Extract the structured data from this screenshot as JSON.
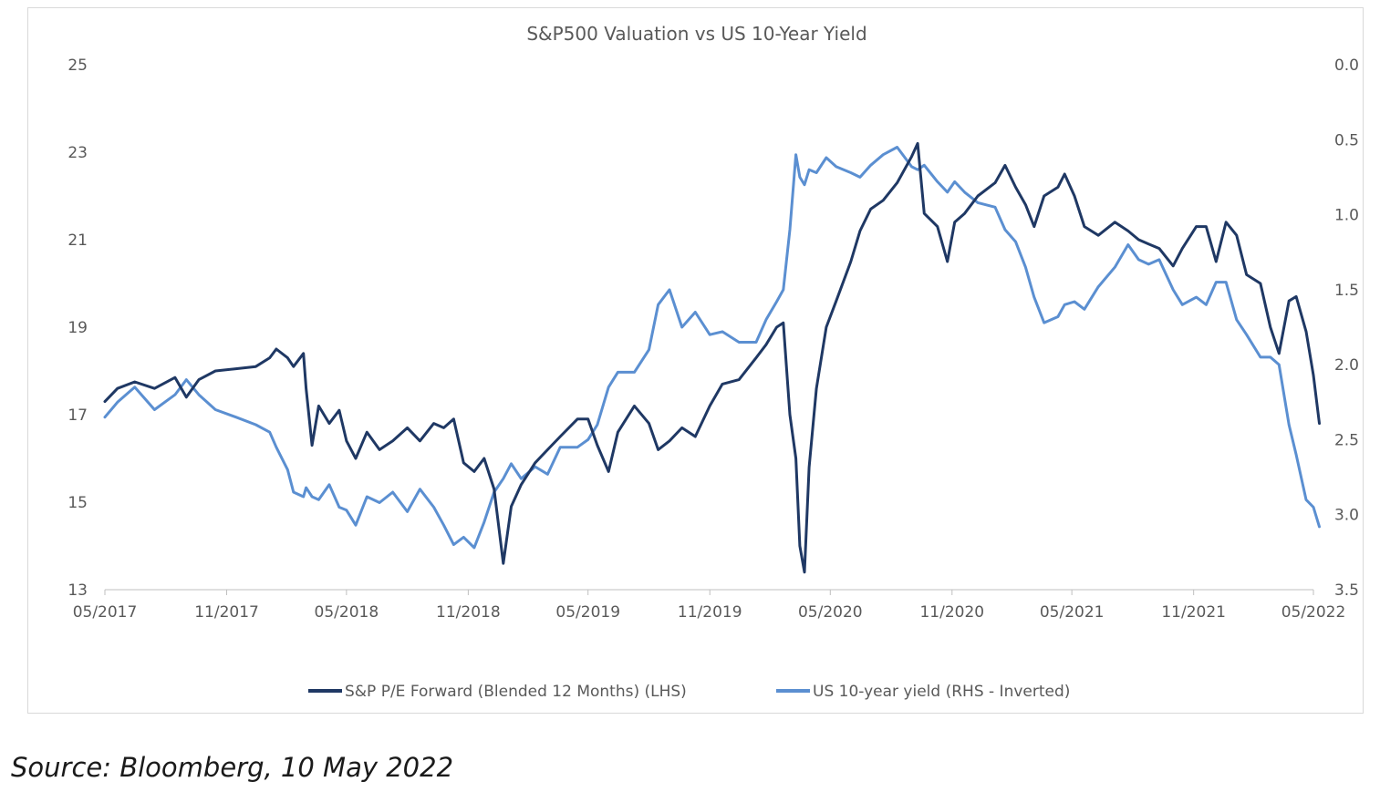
{
  "chart_data": {
    "type": "line",
    "title": "S&P500 Valuation vs US 10-Year Yield",
    "x_ticks": [
      "05/2017",
      "11/2017",
      "05/2018",
      "11/2018",
      "05/2019",
      "11/2019",
      "05/2020",
      "11/2020",
      "05/2021",
      "11/2021",
      "05/2022"
    ],
    "x_range": [
      "2017-05",
      "2022-05"
    ],
    "y_left": {
      "ticks": [
        "13",
        "15",
        "17",
        "19",
        "21",
        "23",
        "25"
      ],
      "range": [
        13,
        25
      ]
    },
    "y_right": {
      "ticks": [
        "0.0",
        "0.5",
        "1.0",
        "1.5",
        "2.0",
        "2.5",
        "3.0",
        "3.5"
      ],
      "range": [
        0,
        3.5
      ],
      "inverted": true
    },
    "grid": false,
    "legend_position": "bottom",
    "series": [
      {
        "name": "S&P  P/E Forward (Blended 12 Months) (LHS)",
        "axis": "left",
        "color": "#1f3864",
        "points": [
          [
            "2017-05-01",
            17.3
          ],
          [
            "2017-05-20",
            17.6
          ],
          [
            "2017-06-15",
            17.75
          ],
          [
            "2017-07-15",
            17.6
          ],
          [
            "2017-08-15",
            17.85
          ],
          [
            "2017-09-01",
            17.4
          ],
          [
            "2017-09-20",
            17.8
          ],
          [
            "2017-10-15",
            18.0
          ],
          [
            "2017-11-15",
            18.05
          ],
          [
            "2017-12-15",
            18.1
          ],
          [
            "2018-01-05",
            18.3
          ],
          [
            "2018-01-15",
            18.5
          ],
          [
            "2018-02-01",
            18.3
          ],
          [
            "2018-02-10",
            18.1
          ],
          [
            "2018-02-25",
            18.4
          ],
          [
            "2018-03-01",
            17.6
          ],
          [
            "2018-03-10",
            16.3
          ],
          [
            "2018-03-20",
            17.2
          ],
          [
            "2018-04-05",
            16.8
          ],
          [
            "2018-04-20",
            17.1
          ],
          [
            "2018-05-01",
            16.4
          ],
          [
            "2018-05-15",
            16.0
          ],
          [
            "2018-06-01",
            16.6
          ],
          [
            "2018-06-20",
            16.2
          ],
          [
            "2018-07-10",
            16.4
          ],
          [
            "2018-08-01",
            16.7
          ],
          [
            "2018-08-20",
            16.4
          ],
          [
            "2018-09-10",
            16.8
          ],
          [
            "2018-09-25",
            16.7
          ],
          [
            "2018-10-10",
            16.9
          ],
          [
            "2018-10-25",
            15.9
          ],
          [
            "2018-11-10",
            15.7
          ],
          [
            "2018-11-25",
            16.0
          ],
          [
            "2018-12-10",
            15.3
          ],
          [
            "2018-12-24",
            13.6
          ],
          [
            "2019-01-05",
            14.9
          ],
          [
            "2019-01-20",
            15.4
          ],
          [
            "2019-02-10",
            15.9
          ],
          [
            "2019-03-01",
            16.2
          ],
          [
            "2019-03-20",
            16.5
          ],
          [
            "2019-04-15",
            16.9
          ],
          [
            "2019-05-01",
            16.9
          ],
          [
            "2019-05-15",
            16.3
          ],
          [
            "2019-06-01",
            15.7
          ],
          [
            "2019-06-15",
            16.6
          ],
          [
            "2019-07-10",
            17.2
          ],
          [
            "2019-08-01",
            16.8
          ],
          [
            "2019-08-15",
            16.2
          ],
          [
            "2019-09-01",
            16.4
          ],
          [
            "2019-09-20",
            16.7
          ],
          [
            "2019-10-10",
            16.5
          ],
          [
            "2019-11-01",
            17.2
          ],
          [
            "2019-11-20",
            17.7
          ],
          [
            "2019-12-15",
            17.8
          ],
          [
            "2020-01-10",
            18.3
          ],
          [
            "2020-01-25",
            18.6
          ],
          [
            "2020-02-10",
            19.0
          ],
          [
            "2020-02-20",
            19.1
          ],
          [
            "2020-03-01",
            17.0
          ],
          [
            "2020-03-10",
            16.0
          ],
          [
            "2020-03-16",
            14.0
          ],
          [
            "2020-03-23",
            13.4
          ],
          [
            "2020-03-30",
            15.8
          ],
          [
            "2020-04-10",
            17.6
          ],
          [
            "2020-04-25",
            19.0
          ],
          [
            "2020-05-10",
            19.6
          ],
          [
            "2020-06-01",
            20.5
          ],
          [
            "2020-06-15",
            21.2
          ],
          [
            "2020-07-01",
            21.7
          ],
          [
            "2020-07-20",
            21.9
          ],
          [
            "2020-08-10",
            22.3
          ],
          [
            "2020-09-01",
            22.9
          ],
          [
            "2020-09-10",
            23.2
          ],
          [
            "2020-09-20",
            21.6
          ],
          [
            "2020-10-10",
            21.3
          ],
          [
            "2020-10-25",
            20.5
          ],
          [
            "2020-11-05",
            21.4
          ],
          [
            "2020-11-20",
            21.6
          ],
          [
            "2020-12-10",
            22.0
          ],
          [
            "2021-01-05",
            22.3
          ],
          [
            "2021-01-20",
            22.7
          ],
          [
            "2021-02-05",
            22.2
          ],
          [
            "2021-02-20",
            21.8
          ],
          [
            "2021-03-05",
            21.3
          ],
          [
            "2021-03-20",
            22.0
          ],
          [
            "2021-04-10",
            22.2
          ],
          [
            "2021-04-20",
            22.5
          ],
          [
            "2021-05-05",
            22.0
          ],
          [
            "2021-05-20",
            21.3
          ],
          [
            "2021-06-10",
            21.1
          ],
          [
            "2021-07-05",
            21.4
          ],
          [
            "2021-07-25",
            21.2
          ],
          [
            "2021-08-10",
            21.0
          ],
          [
            "2021-08-25",
            20.9
          ],
          [
            "2021-09-10",
            20.8
          ],
          [
            "2021-10-01",
            20.4
          ],
          [
            "2021-10-15",
            20.8
          ],
          [
            "2021-11-05",
            21.3
          ],
          [
            "2021-11-20",
            21.3
          ],
          [
            "2021-12-05",
            20.5
          ],
          [
            "2021-12-20",
            21.4
          ],
          [
            "2022-01-05",
            21.1
          ],
          [
            "2022-01-20",
            20.2
          ],
          [
            "2022-02-10",
            20.0
          ],
          [
            "2022-02-25",
            19.0
          ],
          [
            "2022-03-10",
            18.4
          ],
          [
            "2022-03-25",
            19.6
          ],
          [
            "2022-04-05",
            19.7
          ],
          [
            "2022-04-20",
            18.9
          ],
          [
            "2022-05-01",
            17.9
          ],
          [
            "2022-05-10",
            16.8
          ]
        ]
      },
      {
        "name": "US 10-year yield (RHS - Inverted)",
        "axis": "right",
        "color": "#5b8fd1",
        "points": [
          [
            "2017-05-01",
            2.35
          ],
          [
            "2017-05-20",
            2.25
          ],
          [
            "2017-06-15",
            2.15
          ],
          [
            "2017-07-15",
            2.3
          ],
          [
            "2017-08-15",
            2.2
          ],
          [
            "2017-09-01",
            2.1
          ],
          [
            "2017-09-20",
            2.2
          ],
          [
            "2017-10-15",
            2.3
          ],
          [
            "2017-11-15",
            2.35
          ],
          [
            "2017-12-15",
            2.4
          ],
          [
            "2018-01-05",
            2.45
          ],
          [
            "2018-01-15",
            2.55
          ],
          [
            "2018-02-01",
            2.7
          ],
          [
            "2018-02-10",
            2.85
          ],
          [
            "2018-02-25",
            2.88
          ],
          [
            "2018-03-01",
            2.82
          ],
          [
            "2018-03-10",
            2.88
          ],
          [
            "2018-03-20",
            2.9
          ],
          [
            "2018-04-05",
            2.8
          ],
          [
            "2018-04-20",
            2.95
          ],
          [
            "2018-05-01",
            2.97
          ],
          [
            "2018-05-15",
            3.07
          ],
          [
            "2018-06-01",
            2.88
          ],
          [
            "2018-06-20",
            2.92
          ],
          [
            "2018-07-10",
            2.85
          ],
          [
            "2018-08-01",
            2.98
          ],
          [
            "2018-08-20",
            2.83
          ],
          [
            "2018-09-10",
            2.95
          ],
          [
            "2018-09-25",
            3.07
          ],
          [
            "2018-10-10",
            3.2
          ],
          [
            "2018-10-25",
            3.15
          ],
          [
            "2018-11-10",
            3.22
          ],
          [
            "2018-11-25",
            3.05
          ],
          [
            "2018-12-10",
            2.85
          ],
          [
            "2018-12-24",
            2.76
          ],
          [
            "2019-01-05",
            2.66
          ],
          [
            "2019-01-20",
            2.76
          ],
          [
            "2019-02-10",
            2.68
          ],
          [
            "2019-03-01",
            2.73
          ],
          [
            "2019-03-20",
            2.55
          ],
          [
            "2019-04-15",
            2.55
          ],
          [
            "2019-05-01",
            2.5
          ],
          [
            "2019-05-15",
            2.4
          ],
          [
            "2019-06-01",
            2.15
          ],
          [
            "2019-06-15",
            2.05
          ],
          [
            "2019-07-10",
            2.05
          ],
          [
            "2019-08-01",
            1.9
          ],
          [
            "2019-08-15",
            1.6
          ],
          [
            "2019-09-01",
            1.5
          ],
          [
            "2019-09-20",
            1.75
          ],
          [
            "2019-10-10",
            1.65
          ],
          [
            "2019-11-01",
            1.8
          ],
          [
            "2019-11-20",
            1.78
          ],
          [
            "2019-12-15",
            1.85
          ],
          [
            "2020-01-10",
            1.85
          ],
          [
            "2020-01-25",
            1.7
          ],
          [
            "2020-02-10",
            1.58
          ],
          [
            "2020-02-20",
            1.5
          ],
          [
            "2020-03-01",
            1.1
          ],
          [
            "2020-03-10",
            0.6
          ],
          [
            "2020-03-16",
            0.75
          ],
          [
            "2020-03-23",
            0.8
          ],
          [
            "2020-03-30",
            0.7
          ],
          [
            "2020-04-10",
            0.72
          ],
          [
            "2020-04-25",
            0.62
          ],
          [
            "2020-05-10",
            0.68
          ],
          [
            "2020-06-01",
            0.72
          ],
          [
            "2020-06-15",
            0.75
          ],
          [
            "2020-07-01",
            0.67
          ],
          [
            "2020-07-20",
            0.6
          ],
          [
            "2020-08-10",
            0.55
          ],
          [
            "2020-09-01",
            0.68
          ],
          [
            "2020-09-10",
            0.7
          ],
          [
            "2020-09-20",
            0.67
          ],
          [
            "2020-10-10",
            0.78
          ],
          [
            "2020-10-25",
            0.85
          ],
          [
            "2020-11-05",
            0.78
          ],
          [
            "2020-11-20",
            0.85
          ],
          [
            "2020-12-10",
            0.92
          ],
          [
            "2021-01-05",
            0.95
          ],
          [
            "2021-01-20",
            1.1
          ],
          [
            "2021-02-05",
            1.18
          ],
          [
            "2021-02-20",
            1.35
          ],
          [
            "2021-03-05",
            1.55
          ],
          [
            "2021-03-20",
            1.72
          ],
          [
            "2021-04-10",
            1.68
          ],
          [
            "2021-04-20",
            1.6
          ],
          [
            "2021-05-05",
            1.58
          ],
          [
            "2021-05-20",
            1.63
          ],
          [
            "2021-06-10",
            1.48
          ],
          [
            "2021-07-05",
            1.35
          ],
          [
            "2021-07-25",
            1.2
          ],
          [
            "2021-08-10",
            1.3
          ],
          [
            "2021-08-25",
            1.33
          ],
          [
            "2021-09-10",
            1.3
          ],
          [
            "2021-10-01",
            1.5
          ],
          [
            "2021-10-15",
            1.6
          ],
          [
            "2021-11-05",
            1.55
          ],
          [
            "2021-11-20",
            1.6
          ],
          [
            "2021-12-05",
            1.45
          ],
          [
            "2021-12-20",
            1.45
          ],
          [
            "2022-01-05",
            1.7
          ],
          [
            "2022-01-20",
            1.8
          ],
          [
            "2022-02-10",
            1.95
          ],
          [
            "2022-02-25",
            1.95
          ],
          [
            "2022-03-10",
            2.0
          ],
          [
            "2022-03-25",
            2.4
          ],
          [
            "2022-04-05",
            2.6
          ],
          [
            "2022-04-20",
            2.9
          ],
          [
            "2022-05-01",
            2.95
          ],
          [
            "2022-05-10",
            3.08
          ]
        ]
      }
    ]
  },
  "source_note": "Source:  Bloomberg, 10 May 2022"
}
